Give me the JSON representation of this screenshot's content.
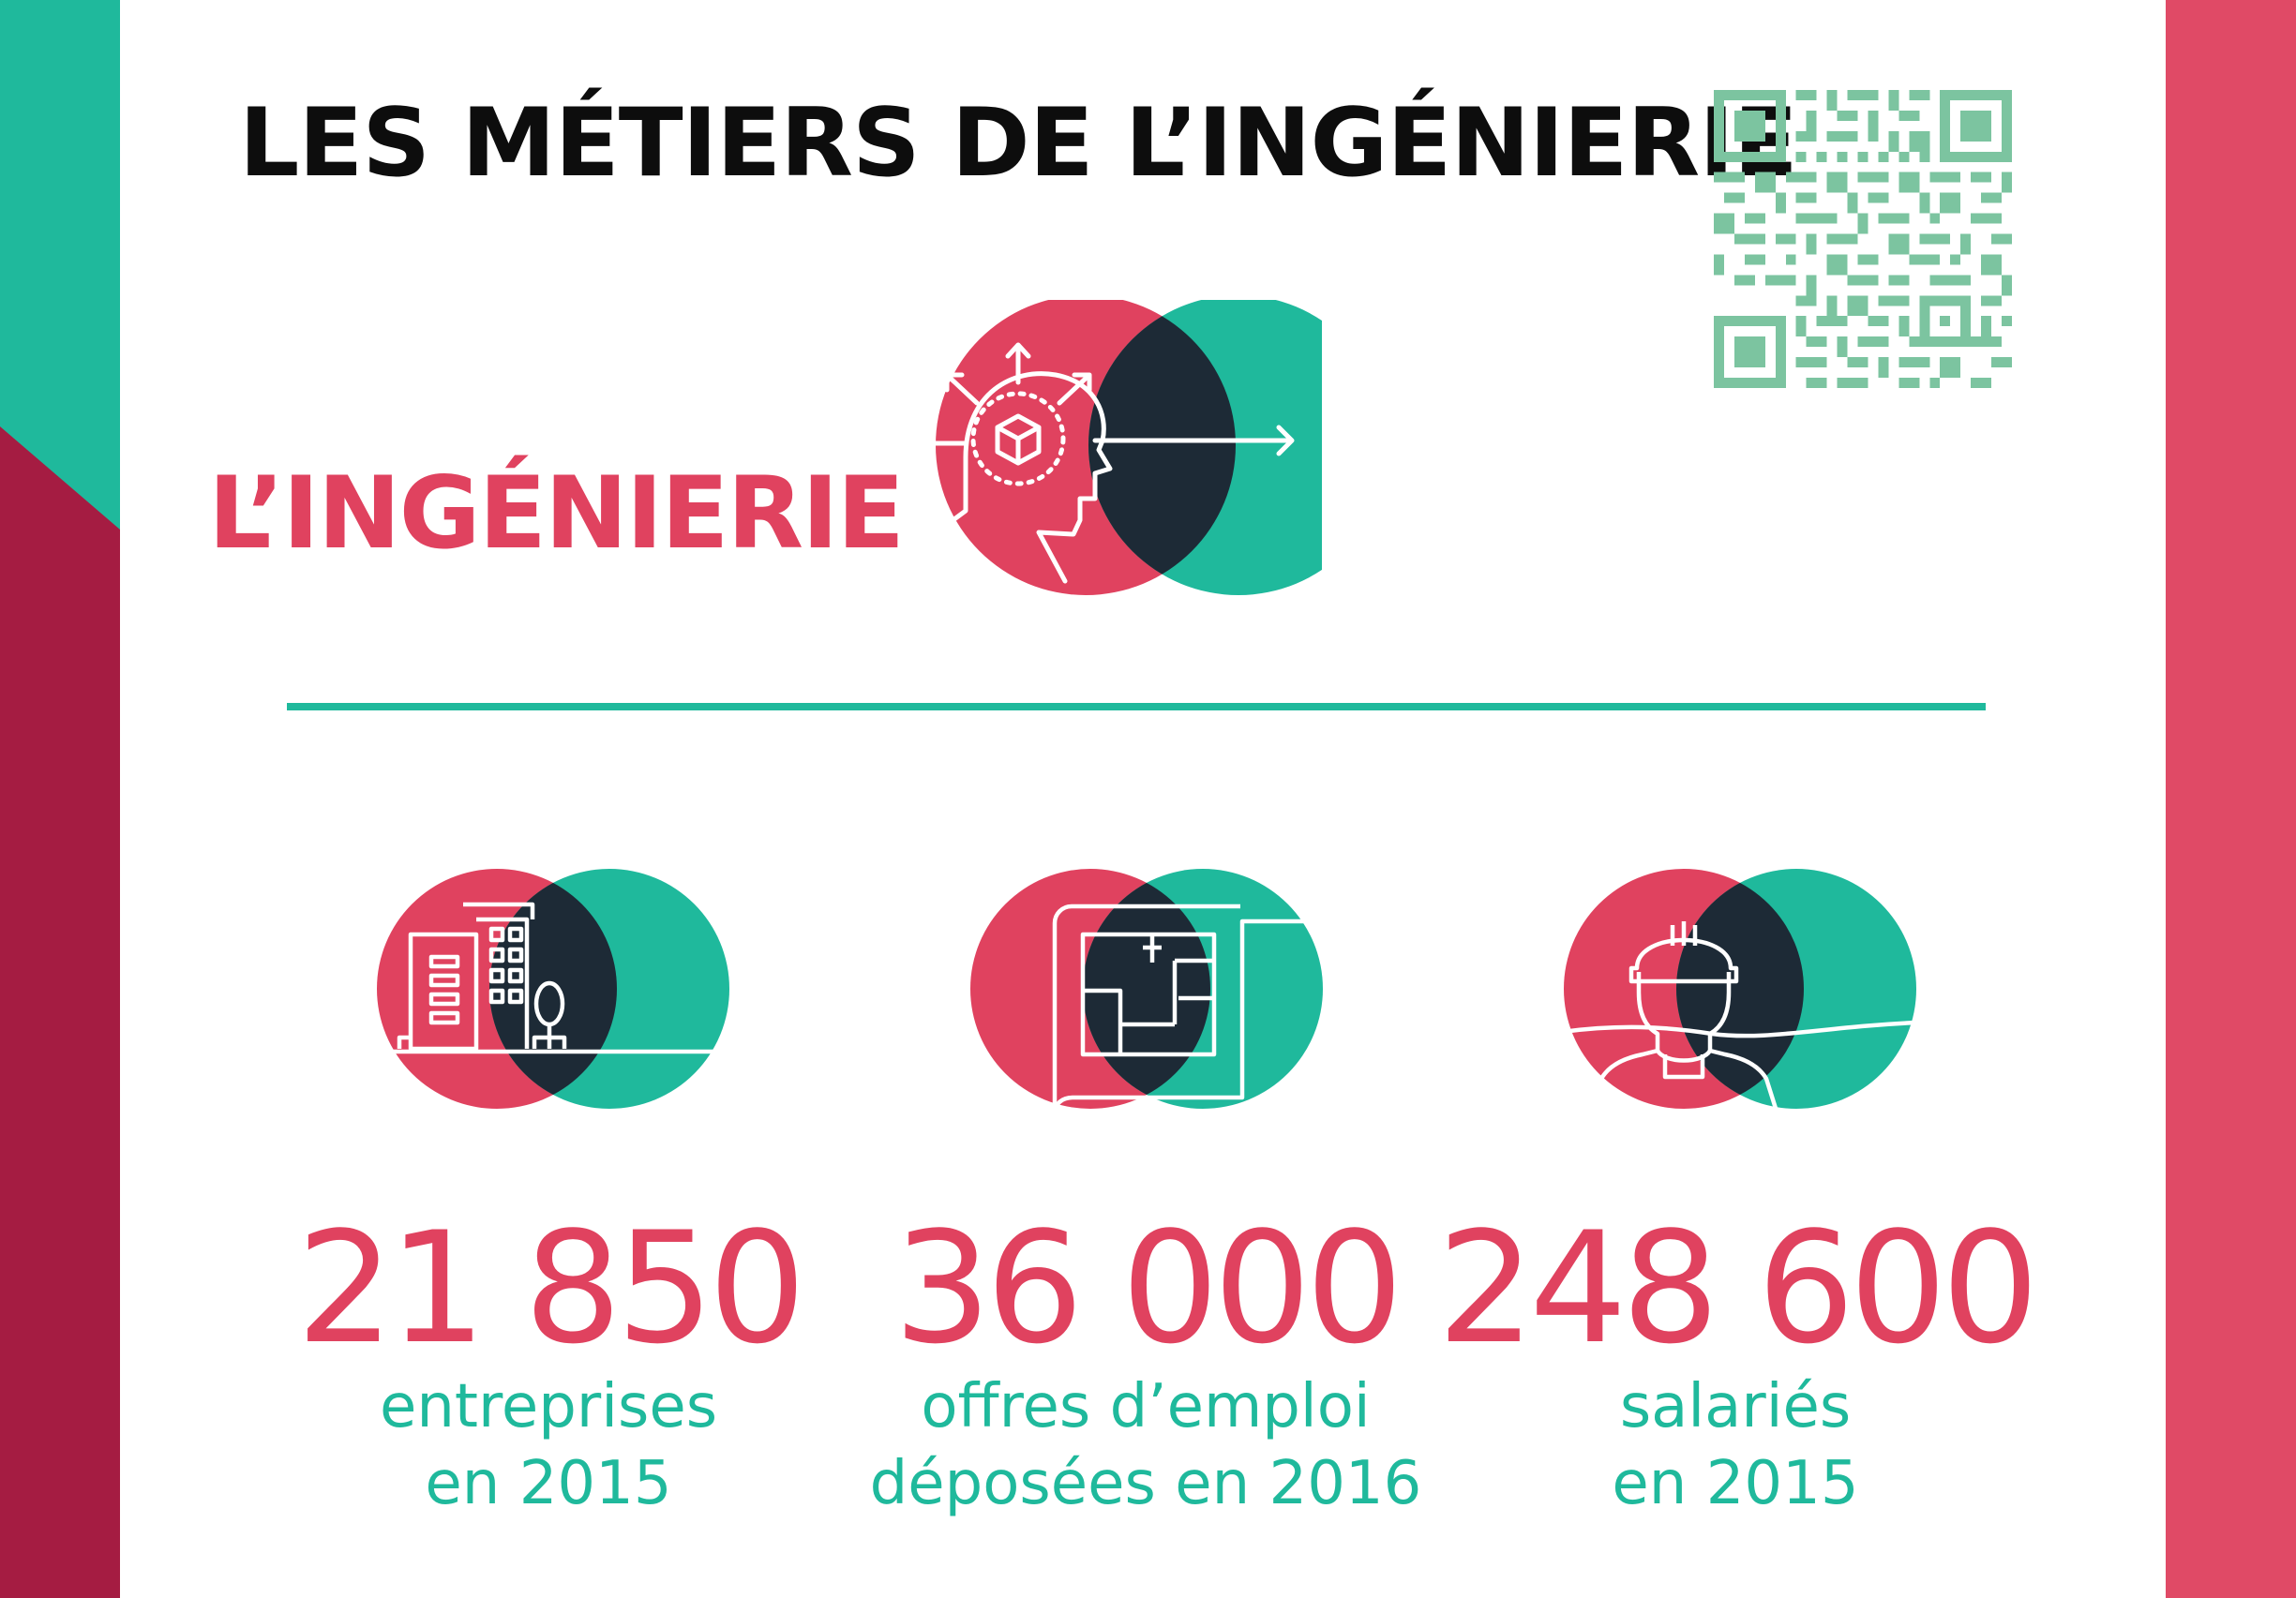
{
  "title": "LES MÉTIERS DE L’INGÉNIERIE",
  "subtitle": "L’INGÉNIERIE",
  "colors": {
    "pink": "#e0425f",
    "teal": "#1fb99c",
    "navy": "#1d2a36",
    "crimson": "#a51c42",
    "qr_green": "#7cc4a0"
  },
  "icons": {
    "qr": "qr-code",
    "hero": "head-with-cube-icon",
    "stat_1": "buildings-icon",
    "stat_2": "blueprint-icon",
    "stat_3": "worker-helmet-icon"
  },
  "stats": [
    {
      "value": "21 850",
      "label_line1": "entreprises",
      "label_line2": "en 2015"
    },
    {
      "value": "36 000",
      "label_line1": "offres d’emploi",
      "label_line2": "déposées en 2016"
    },
    {
      "value": "248 600",
      "label_line1": "salariés",
      "label_line2": "en 2015"
    }
  ]
}
